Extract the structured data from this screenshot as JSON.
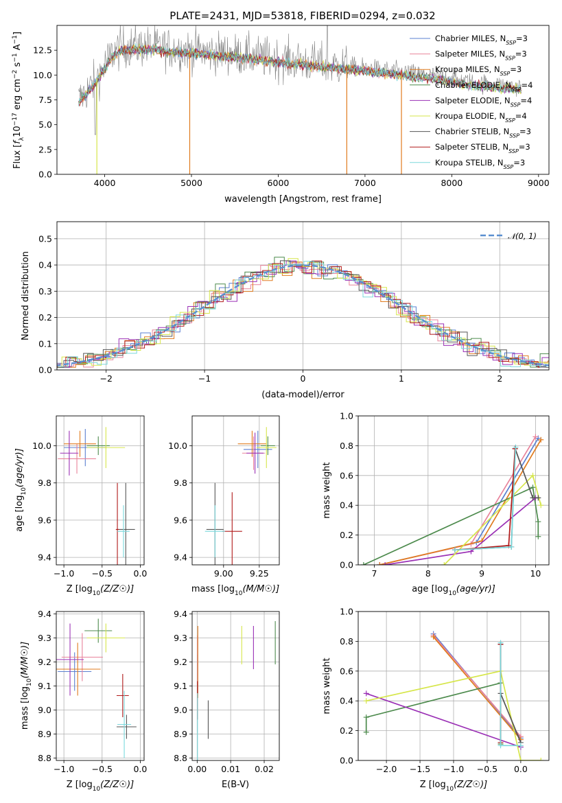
{
  "chart_data": [
    {
      "id": "spectrum",
      "type": "line",
      "title": "PLATE=2431, MJD=53818, FIBERID=0294, z=0.032",
      "xlabel": "wavelength [Angstrom, rest frame]",
      "ylabel": "Flux [f_λ 10^-17 erg cm^-2 s^-1 A^-1]",
      "xlim": [
        3450,
        9120
      ],
      "ylim": [
        0,
        15
      ],
      "xticks": [
        4000,
        5000,
        6000,
        7000,
        8000,
        9000
      ],
      "yticks": [
        0.0,
        2.5,
        5.0,
        7.5,
        10.0,
        12.5
      ],
      "ytick_labels": [
        "0.0",
        "2.5",
        "5.0",
        "7.5",
        "10.0",
        "12.5"
      ],
      "grid": false,
      "legend": "top-right",
      "series": [
        {
          "name": "Chabrier MILES, N_SSP=3",
          "color": "#5a7fd0"
        },
        {
          "name": "Salpeter MILES, N_SSP=3",
          "color": "#e8829a"
        },
        {
          "name": "Kroupa MILES, N_SSP=3",
          "color": "#e07b1e"
        },
        {
          "name": "Chabrier ELODIE, N_SSP=4",
          "color": "#4c8a4c"
        },
        {
          "name": "Salpeter ELODIE, N_SSP=4",
          "color": "#9a2fb5"
        },
        {
          "name": "Kroupa ELODIE, N_SSP=4",
          "color": "#d6e64a"
        },
        {
          "name": "Chabrier STELIB, N_SSP=3",
          "color": "#555555"
        },
        {
          "name": "Salpeter STELIB, N_SSP=3",
          "color": "#b01818"
        },
        {
          "name": "Kroupa STELIB, N_SSP=3",
          "color": "#7ad8dc"
        }
      ],
      "data_color": "#808080",
      "continuum": {
        "x": [
          3700,
          3800,
          3900,
          4000,
          4100,
          4200,
          4400,
          4600,
          4800,
          5000,
          5200,
          5400,
          5600,
          5800,
          6000,
          6200,
          6400,
          6600,
          6800,
          7000,
          7200,
          7400,
          7600,
          7800,
          8000,
          8200,
          8400,
          8600,
          8800
        ],
        "y": [
          7.5,
          8.5,
          9.5,
          11.0,
          12.3,
          12.8,
          12.9,
          12.8,
          12.6,
          12.5,
          12.3,
          12.2,
          12.0,
          11.8,
          11.6,
          11.4,
          11.2,
          11.0,
          10.9,
          10.7,
          10.5,
          10.3,
          10.1,
          9.9,
          9.6,
          9.3,
          9.1,
          8.9,
          8.8
        ]
      }
    },
    {
      "id": "residuals",
      "type": "step",
      "xlabel": "(data-model)/error",
      "ylabel": "Normed distribution",
      "xlim": [
        -2.5,
        2.5
      ],
      "ylim": [
        0,
        0.565
      ],
      "xticks": [
        -2,
        -1,
        0,
        1,
        2
      ],
      "xtick_labels": [
        "−2",
        "−1",
        "0",
        "1",
        "2"
      ],
      "yticks": [
        0.0,
        0.1,
        0.2,
        0.3,
        0.4,
        0.5
      ],
      "ytick_labels": [
        "0.0",
        "0.1",
        "0.2",
        "0.3",
        "0.4",
        "0.5"
      ],
      "grid": true,
      "legend": "top-right",
      "normal_label": "𝒩(0, 1)",
      "normal_color": "#5a8fd0"
    },
    {
      "id": "age_vs_Z",
      "type": "errorbar",
      "xlabel": "Z [log10(Z/Z☉)]",
      "ylabel": "age  [log10(age/yr)]",
      "xlim": [
        -1.1,
        0.05
      ],
      "ylim": [
        9.36,
        10.16
      ],
      "xticks": [
        -1.0,
        -0.5,
        0.0
      ],
      "xtick_labels": [
        "−1.0",
        "−0.5",
        "0.0"
      ],
      "yticks": [
        9.4,
        9.6,
        9.8,
        10.0
      ],
      "ytick_labels": [
        "9.4",
        "9.6",
        "9.8",
        "10.0"
      ],
      "grid": true,
      "points": [
        {
          "x": -0.72,
          "xerr": 0.28,
          "y": 9.99,
          "yerr": 0.1,
          "color": "#5a7fd0"
        },
        {
          "x": -0.83,
          "xerr": 0.25,
          "y": 9.93,
          "yerr": 0.08,
          "color": "#e8829a"
        },
        {
          "x": -0.79,
          "xerr": 0.21,
          "y": 10.01,
          "yerr": 0.07,
          "color": "#e07b1e"
        },
        {
          "x": -0.55,
          "xerr": 0.15,
          "y": 10.0,
          "yerr": 0.05,
          "color": "#4c8a4c"
        },
        {
          "x": -0.93,
          "xerr": 0.12,
          "y": 9.96,
          "yerr": 0.12,
          "color": "#9a2fb5"
        },
        {
          "x": -0.45,
          "xerr": 0.25,
          "y": 9.99,
          "yerr": 0.11,
          "color": "#d6e64a"
        },
        {
          "x": -0.19,
          "xerr": 0.12,
          "y": 9.55,
          "yerr": 0.25,
          "color": "#555555"
        },
        {
          "x": -0.3,
          "xerr": 0.02,
          "y": 9.55,
          "yerr": 0.25,
          "color": "#b01818"
        },
        {
          "x": -0.22,
          "xerr": 0.08,
          "y": 9.54,
          "yerr": 0.14,
          "color": "#7ad8dc"
        }
      ]
    },
    {
      "id": "age_vs_mass",
      "type": "errorbar",
      "xlabel": "mass [log10(M/M☉)]",
      "ylabel": "",
      "xlim": [
        8.78,
        9.39
      ],
      "ylim": [
        9.36,
        10.16
      ],
      "xticks": [
        9.0,
        9.25
      ],
      "xtick_labels": [
        "9.00",
        "9.25"
      ],
      "yticks": [
        9.4,
        9.6,
        9.8,
        10.0
      ],
      "ytick_labels": [
        "9.4",
        "9.6",
        "9.8",
        "10.0"
      ],
      "grid": true,
      "points": [
        {
          "x": 9.24,
          "xerr": 0.1,
          "y": 9.98,
          "yerr": 0.1,
          "color": "#5a7fd0"
        },
        {
          "x": 9.21,
          "xerr": 0.08,
          "y": 9.96,
          "yerr": 0.09,
          "color": "#e8829a"
        },
        {
          "x": 9.2,
          "xerr": 0.1,
          "y": 10.01,
          "yerr": 0.07,
          "color": "#e07b1e"
        },
        {
          "x": 9.31,
          "xerr": 0.05,
          "y": 10.0,
          "yerr": 0.05,
          "color": "#4c8a4c"
        },
        {
          "x": 9.22,
          "xerr": 0.06,
          "y": 9.96,
          "yerr": 0.11,
          "color": "#9a2fb5"
        },
        {
          "x": 9.3,
          "xerr": 0.07,
          "y": 9.99,
          "yerr": 0.11,
          "color": "#d6e64a"
        },
        {
          "x": 8.94,
          "xerr": 0.06,
          "y": 9.55,
          "yerr": 0.25,
          "color": "#555555"
        },
        {
          "x": 9.06,
          "xerr": 0.07,
          "y": 9.54,
          "yerr": 0.21,
          "color": "#b01818"
        },
        {
          "x": 8.94,
          "xerr": 0.07,
          "y": 9.54,
          "yerr": 0.14,
          "color": "#7ad8dc"
        }
      ]
    },
    {
      "id": "massweight_vs_age",
      "type": "line",
      "xlabel": "age  [log10(age/yr)]",
      "ylabel": "mass weight",
      "xlim": [
        6.7,
        10.25
      ],
      "ylim": [
        0,
        1
      ],
      "xticks": [
        7,
        8,
        9,
        10
      ],
      "xtick_labels": [
        "7",
        "8",
        "9",
        "10"
      ],
      "yticks": [
        0.0,
        0.2,
        0.4,
        0.6,
        0.8,
        1.0
      ],
      "ytick_labels": [
        "0.0",
        "0.2",
        "0.4",
        "0.6",
        "0.8",
        "1.0"
      ],
      "grid": true,
      "series": [
        {
          "color": "#5a7fd0",
          "x": [
            7.1,
            8.9,
            10.05
          ],
          "y": [
            0.0,
            0.15,
            0.85
          ]
        },
        {
          "color": "#e8829a",
          "x": [
            7.1,
            8.8,
            10.0
          ],
          "y": [
            0.0,
            0.14,
            0.86
          ]
        },
        {
          "color": "#e07b1e",
          "x": [
            7.1,
            9.0,
            10.1
          ],
          "y": [
            0.0,
            0.16,
            0.84
          ]
        },
        {
          "color": "#4c8a4c",
          "x": [
            6.8,
            9.95,
            10.05,
            10.05
          ],
          "y": [
            0.0,
            0.52,
            0.29,
            0.19
          ]
        },
        {
          "color": "#9a2fb5",
          "x": [
            7.2,
            8.8,
            10.0
          ],
          "y": [
            0.0,
            0.09,
            0.45
          ]
        },
        {
          "color": "#d6e64a",
          "x": [
            8.3,
            9.95,
            10.1
          ],
          "y": [
            0.0,
            0.6,
            0.4
          ]
        },
        {
          "color": "#555555",
          "x": [
            8.5,
            9.55,
            9.62,
            9.95,
            10.05
          ],
          "y": [
            0.1,
            0.12,
            0.78,
            0.45,
            0.45
          ]
        },
        {
          "color": "#b01818",
          "x": [
            8.5,
            9.5,
            9.62
          ],
          "y": [
            0.1,
            0.13,
            0.78
          ]
        },
        {
          "color": "#7ad8dc",
          "x": [
            8.5,
            9.55,
            9.63
          ],
          "y": [
            0.1,
            0.12,
            0.79
          ]
        }
      ]
    },
    {
      "id": "mass_vs_Z",
      "type": "errorbar",
      "xlabel": "Z [log10(Z/Z☉)]",
      "ylabel": "mass [log10(M/M☉)]",
      "xlim": [
        -1.1,
        0.05
      ],
      "ylim": [
        8.79,
        9.41
      ],
      "xticks": [
        -1.0,
        -0.5,
        0.0
      ],
      "xtick_labels": [
        "−1.0",
        "−0.5",
        "0.0"
      ],
      "yticks": [
        8.8,
        8.9,
        9.0,
        9.1,
        9.2,
        9.3,
        9.4
      ],
      "ytick_labels": [
        "8.8",
        "8.9",
        "9.0",
        "9.1",
        "9.2",
        "9.3",
        "9.4"
      ],
      "grid": true,
      "points": [
        {
          "x": -0.86,
          "xerr": 0.22,
          "y": 9.16,
          "yerr": 0.08,
          "color": "#5a7fd0"
        },
        {
          "x": -0.76,
          "xerr": 0.27,
          "y": 9.22,
          "yerr": 0.1,
          "color": "#e8829a"
        },
        {
          "x": -0.82,
          "xerr": 0.3,
          "y": 9.17,
          "yerr": 0.11,
          "color": "#e07b1e"
        },
        {
          "x": -0.55,
          "xerr": 0.18,
          "y": 9.33,
          "yerr": 0.05,
          "color": "#4c8a4c"
        },
        {
          "x": -0.92,
          "xerr": 0.18,
          "y": 9.21,
          "yerr": 0.15,
          "color": "#9a2fb5"
        },
        {
          "x": -0.45,
          "xerr": 0.25,
          "y": 9.3,
          "yerr": 0.06,
          "color": "#d6e64a"
        },
        {
          "x": -0.18,
          "xerr": 0.13,
          "y": 8.93,
          "yerr": 0.05,
          "color": "#555555"
        },
        {
          "x": -0.23,
          "xerr": 0.08,
          "y": 9.06,
          "yerr": 0.09,
          "color": "#b01818"
        },
        {
          "x": -0.21,
          "xerr": 0.09,
          "y": 8.94,
          "yerr": 0.14,
          "color": "#7ad8dc"
        }
      ]
    },
    {
      "id": "mass_vs_ebv",
      "type": "errorbar",
      "xlabel": "E(B-V)",
      "ylabel": "",
      "xlim": [
        -0.0015,
        0.0245
      ],
      "ylim": [
        8.79,
        9.41
      ],
      "xticks": [
        0.0,
        0.01,
        0.02
      ],
      "xtick_labels": [
        "0.00",
        "0.01",
        "0.02"
      ],
      "yticks": [
        8.8,
        8.9,
        9.0,
        9.1,
        9.2,
        9.3,
        9.4
      ],
      "ytick_labels": [
        "8.8",
        "8.9",
        "9.0",
        "9.1",
        "9.2",
        "9.3",
        "9.4"
      ],
      "grid": true,
      "points": [
        {
          "x": 0.0001,
          "xerr": 0,
          "y": 9.15,
          "yerr": 0.08,
          "color": "#5a7fd0"
        },
        {
          "x": 0.0001,
          "xerr": 0,
          "y": 9.21,
          "yerr": 0.1,
          "color": "#e8829a"
        },
        {
          "x": 0.0002,
          "xerr": 0,
          "y": 9.2,
          "yerr": 0.15,
          "color": "#e07b1e"
        },
        {
          "x": 0.0233,
          "xerr": 0,
          "y": 9.28,
          "yerr": 0.09,
          "color": "#4c8a4c"
        },
        {
          "x": 0.0168,
          "xerr": 0,
          "y": 9.26,
          "yerr": 0.09,
          "color": "#9a2fb5"
        },
        {
          "x": 0.0133,
          "xerr": 0,
          "y": 9.27,
          "yerr": 0.08,
          "color": "#d6e64a"
        },
        {
          "x": 0.0033,
          "xerr": 0,
          "y": 8.96,
          "yerr": 0.08,
          "color": "#555555"
        },
        {
          "x": 0.0001,
          "xerr": 0,
          "y": 9.04,
          "yerr": 0.08,
          "color": "#b01818"
        },
        {
          "x": 0.0001,
          "xerr": 0,
          "y": 8.93,
          "yerr": 0.14,
          "color": "#7ad8dc"
        }
      ]
    },
    {
      "id": "massweight_vs_Z",
      "type": "line",
      "xlabel": "Z [log10(Z/Z☉)]",
      "ylabel": "mass weight",
      "xlim": [
        -2.42,
        0.42
      ],
      "ylim": [
        0,
        1
      ],
      "xticks": [
        -2.0,
        -1.5,
        -1.0,
        -0.5,
        0.0
      ],
      "xtick_labels": [
        "−2.0",
        "−1.5",
        "−1.0",
        "−0.5",
        "0.0"
      ],
      "yticks": [
        0.0,
        0.2,
        0.4,
        0.6,
        0.8,
        1.0
      ],
      "ytick_labels": [
        "0.0",
        "0.2",
        "0.4",
        "0.6",
        "0.8",
        "1.0"
      ],
      "grid": true,
      "series": [
        {
          "color": "#5a7fd0",
          "x": [
            -1.3,
            0.0
          ],
          "y": [
            0.85,
            0.15
          ]
        },
        {
          "color": "#e8829a",
          "x": [
            -1.3,
            0.0
          ],
          "y": [
            0.84,
            0.16
          ]
        },
        {
          "color": "#e07b1e",
          "x": [
            -1.3,
            0.0
          ],
          "y": [
            0.83,
            0.14
          ]
        },
        {
          "color": "#4c8a4c",
          "x": [
            -2.3,
            -2.3,
            -0.3,
            -0.3
          ],
          "y": [
            0.19,
            0.29,
            0.52,
            0.11
          ]
        },
        {
          "color": "#9a2fb5",
          "x": [
            -2.3,
            0.0
          ],
          "y": [
            0.45,
            0.09
          ]
        },
        {
          "color": "#d6e64a",
          "x": [
            -2.3,
            -0.3,
            0.0,
            0.3
          ],
          "y": [
            0.4,
            0.6,
            0.0,
            0.0
          ]
        },
        {
          "color": "#555555",
          "x": [
            -0.3,
            -0.3,
            0.0
          ],
          "y": [
            0.78,
            0.45,
            0.12
          ]
        },
        {
          "color": "#b01818",
          "x": [
            -0.3,
            -0.3
          ],
          "y": [
            0.78,
            0.12
          ]
        },
        {
          "color": "#7ad8dc",
          "x": [
            -0.3,
            -0.3,
            0.0
          ],
          "y": [
            0.79,
            0.1,
            0.1
          ]
        }
      ]
    }
  ]
}
